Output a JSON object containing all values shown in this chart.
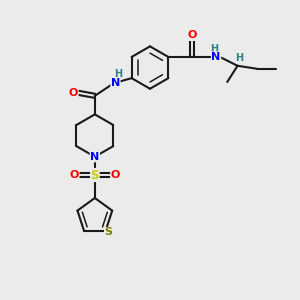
{
  "background_color": "#EBEBEB",
  "bond_color": "#1a1a1a",
  "atom_colors": {
    "N": "#0000FF",
    "O": "#FF0000",
    "S_sulfonyl": "#CCCC00",
    "S_thiophene": "#808000",
    "H": "#2F8080",
    "C": "#1a1a1a"
  },
  "figsize": [
    3.0,
    3.0
  ],
  "dpi": 100
}
